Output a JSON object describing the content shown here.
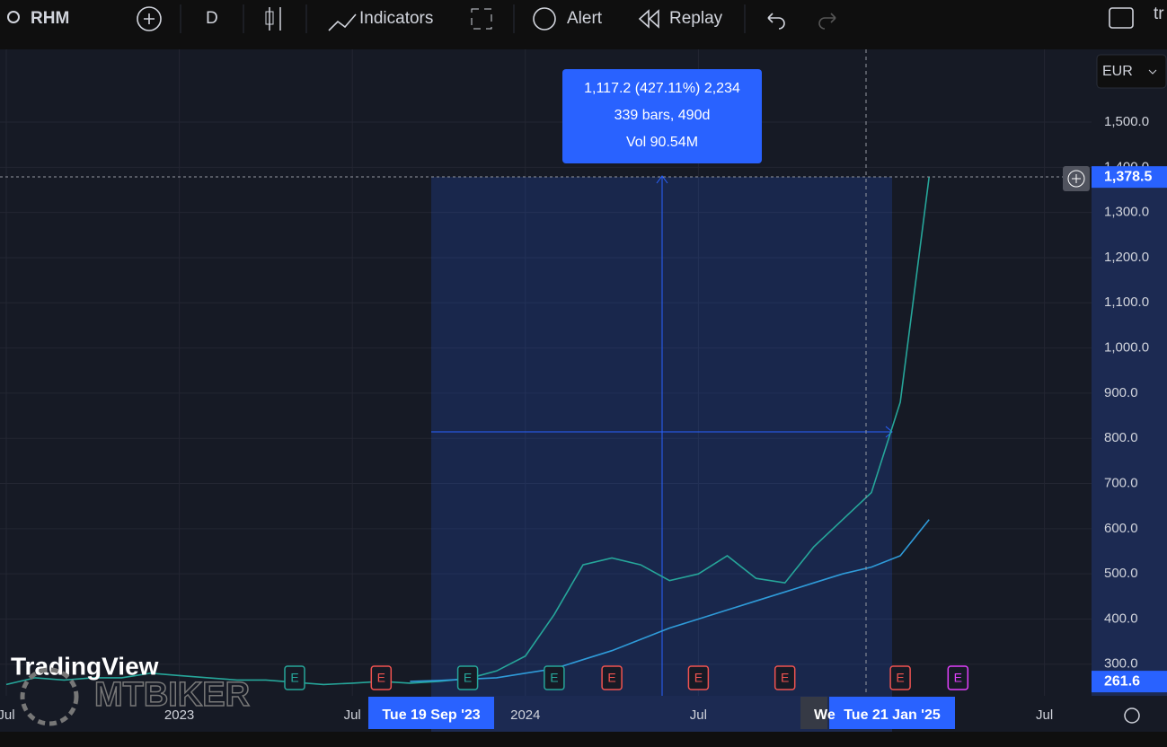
{
  "toolbar": {
    "symbol": "RHM",
    "interval": "D",
    "indicators": "Indicators",
    "alert": "Alert",
    "replay": "Replay",
    "account": "tr"
  },
  "currency": "EUR",
  "measure": {
    "line1": "1,117.2 (427.11%) 2,234",
    "line2": "339 bars, 490d",
    "line3": "Vol 90.54M"
  },
  "watermark": {
    "brand": "TradingView",
    "owner": "MTBIKER"
  },
  "chart_data": {
    "type": "line",
    "x": [
      "2022-07",
      "2022-08",
      "2022-09",
      "2022-10",
      "2022-11",
      "2022-12",
      "2023-01",
      "2023-02",
      "2023-03",
      "2023-04",
      "2023-05",
      "2023-06",
      "2023-07",
      "2023-08",
      "2023-09",
      "2023-10",
      "2023-11",
      "2023-12",
      "2024-01",
      "2024-02",
      "2024-03",
      "2024-04",
      "2024-05",
      "2024-06",
      "2024-07",
      "2024-08",
      "2024-09",
      "2024-10",
      "2024-11",
      "2024-12",
      "2025-01",
      "2025-02",
      "2025-03"
    ],
    "series": [
      {
        "color": "#26a69a",
        "values": [
          255,
          270,
          265,
          270,
          270,
          280,
          275,
          270,
          265,
          265,
          260,
          255,
          258,
          262,
          258,
          262,
          268,
          285,
          318,
          410,
          520,
          535,
          520,
          485,
          500,
          540,
          490,
          480,
          560,
          620,
          680,
          880,
          1378.5
        ]
      },
      {
        "color": "#2f9bd9",
        "values": [
          null,
          null,
          null,
          null,
          null,
          null,
          null,
          null,
          null,
          null,
          null,
          null,
          null,
          null,
          262,
          264,
          267,
          270,
          280,
          290,
          310,
          330,
          355,
          380,
          400,
          420,
          440,
          460,
          480,
          500,
          515,
          540,
          620
        ]
      }
    ],
    "ylim": [
      230,
      1661
    ],
    "yticks": [
      {
        "value": 300,
        "label": "300.0"
      },
      {
        "value": 400,
        "label": "400.0"
      },
      {
        "value": 500,
        "label": "500.0"
      },
      {
        "value": 600,
        "label": "600.0"
      },
      {
        "value": 700,
        "label": "700.0"
      },
      {
        "value": 800,
        "label": "800.0"
      },
      {
        "value": 900,
        "label": "900.0"
      },
      {
        "value": 1000,
        "label": "1,000.0"
      },
      {
        "value": 1100,
        "label": "1,100.0"
      },
      {
        "value": 1200,
        "label": "1,200.0"
      },
      {
        "value": 1300,
        "label": "1,300.0"
      },
      {
        "value": 1400,
        "label": "1,400.0"
      },
      {
        "value": 1500,
        "label": "1,500.0"
      }
    ],
    "xticks": [
      {
        "value": "2022-07",
        "label": "Jul"
      },
      {
        "value": "2023-01",
        "label": "2023"
      },
      {
        "value": "2023-07",
        "label": "Jul"
      },
      {
        "value": "2024-01",
        "label": "2024"
      },
      {
        "value": "2024-07",
        "label": "Jul"
      },
      {
        "value": "2025-07",
        "label": "Jul"
      }
    ],
    "grid": true,
    "price_labels": [
      {
        "value": 1378.5,
        "label": "1,378.5"
      },
      {
        "value": 261.6,
        "label": "261.6"
      }
    ],
    "date_labels": [
      {
        "value": "2023-09",
        "label": "Tue 19 Sep '23"
      },
      {
        "value": "2025-01",
        "label": "Tue 21 Jan '25"
      },
      {
        "value": "2024-12",
        "label": "We"
      }
    ],
    "earnings": [
      {
        "x": "2023-05",
        "label": "E",
        "color": "#26a69a"
      },
      {
        "x": "2023-08",
        "label": "E",
        "color": "#ef5350"
      },
      {
        "x": "2023-11",
        "label": "E",
        "color": "#26a69a"
      },
      {
        "x": "2024-02",
        "label": "E",
        "color": "#26a69a"
      },
      {
        "x": "2024-04",
        "label": "E",
        "color": "#ef5350"
      },
      {
        "x": "2024-07",
        "label": "E",
        "color": "#ef5350"
      },
      {
        "x": "2024-10",
        "label": "E",
        "color": "#ef5350"
      },
      {
        "x": "2025-02",
        "label": "E",
        "color": "#ef5350"
      },
      {
        "x": "2025-04",
        "label": "E",
        "color": "#e040fb"
      }
    ]
  }
}
